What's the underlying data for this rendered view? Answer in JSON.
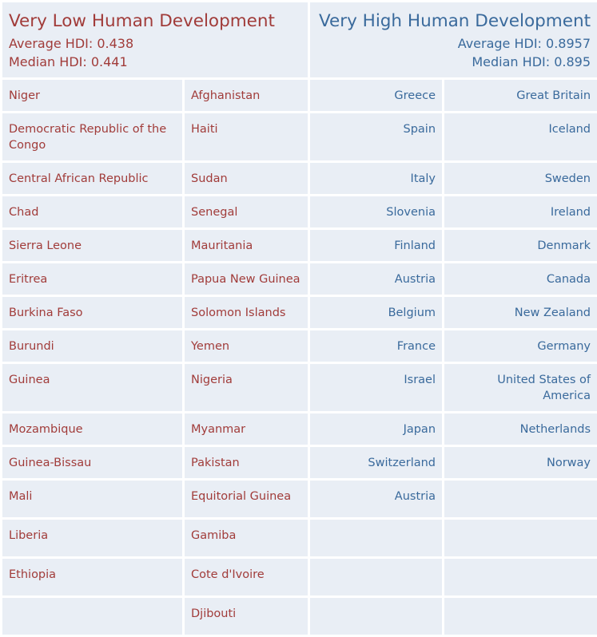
{
  "low": {
    "title": "Very Low Human Development",
    "average": "Average HDI: 0.438",
    "median": "Median HDI: 0.441"
  },
  "high": {
    "title": "Very High Human Development",
    "average": "Average HDI: 0.8957",
    "median": "Median HDI: 0.895"
  },
  "rows": [
    [
      "Niger",
      "Afghanistan",
      "Greece",
      "Great Britain"
    ],
    [
      "Democratic Republic of the Congo",
      "Haiti",
      "Spain",
      "Iceland"
    ],
    [
      "Central African Republic",
      "Sudan",
      "Italy",
      "Sweden"
    ],
    [
      "Chad",
      "Senegal",
      "Slovenia",
      "Ireland"
    ],
    [
      "Sierra Leone",
      "Mauritania",
      "Finland",
      "Denmark"
    ],
    [
      "Eritrea",
      "Papua New Guinea",
      "Austria",
      "Canada"
    ],
    [
      "Burkina Faso",
      "Solomon Islands",
      "Belgium",
      "New Zealand"
    ],
    [
      "Burundi",
      "Yemen",
      "France",
      "Germany"
    ],
    [
      "Guinea",
      "Nigeria",
      "Israel",
      "United States of America"
    ],
    [
      "Mozambique",
      "Myanmar",
      "Japan",
      "Netherlands"
    ],
    [
      "Guinea-Bissau",
      "Pakistan",
      "Switzerland",
      "Norway"
    ],
    [
      "Mali",
      "Equitorial Guinea",
      "Austria",
      ""
    ],
    [
      "Liberia",
      "Gamiba",
      "",
      ""
    ],
    [
      "Ethiopia",
      "Cote d'Ivoire",
      "",
      ""
    ],
    [
      "",
      "Djibouti",
      "",
      ""
    ]
  ]
}
